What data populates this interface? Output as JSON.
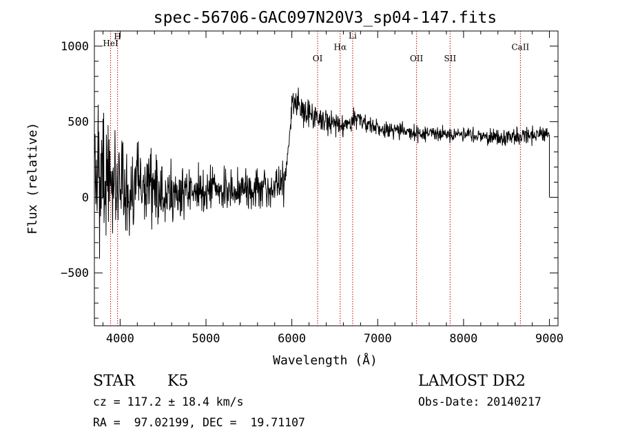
{
  "chart_data": {
    "type": "line",
    "title": "spec-56706-GAC097N20V3_sp04-147.fits",
    "xlabel": "Wavelength (Å)",
    "ylabel": "Flux (relative)",
    "xlim": [
      3700,
      9100
    ],
    "ylim": [
      -850,
      1100
    ],
    "x_ticks": [
      4000,
      5000,
      6000,
      7000,
      8000,
      9000
    ],
    "x_tick_labels": [
      "4000",
      "5000",
      "6000",
      "7000",
      "8000",
      "9000"
    ],
    "y_ticks": [
      -500,
      0,
      500,
      1000
    ],
    "y_tick_labels": [
      "−500",
      "0",
      "500",
      "1000"
    ],
    "grid": false,
    "series_color": "#000000",
    "line_color": "#c00000",
    "lines": [
      {
        "label": "HeI",
        "x": 3889,
        "label_y": 1000
      },
      {
        "label": "H",
        "x": 3970,
        "label_y": 1045
      },
      {
        "label": "OI",
        "x": 6300,
        "label_y": 900
      },
      {
        "label": "Hα",
        "x": 6563,
        "label_y": 975
      },
      {
        "label": "Li",
        "x": 6708,
        "label_y": 1050
      },
      {
        "label": "OII",
        "x": 7452,
        "label_y": 900
      },
      {
        "label": "SII",
        "x": 7843,
        "label_y": 900
      },
      {
        "label": "CaII",
        "x": 8662,
        "label_y": 975
      }
    ],
    "spectrum_profile": [
      {
        "x": 3700,
        "y": 150,
        "noise": 380
      },
      {
        "x": 3800,
        "y": 150,
        "noise": 420
      },
      {
        "x": 4000,
        "y": 80,
        "noise": 300
      },
      {
        "x": 4500,
        "y": 20,
        "noise": 170
      },
      {
        "x": 5000,
        "y": 40,
        "noise": 120
      },
      {
        "x": 5500,
        "y": 60,
        "noise": 100
      },
      {
        "x": 5900,
        "y": 80,
        "noise": 120
      },
      {
        "x": 5950,
        "y": 250,
        "noise": 90
      },
      {
        "x": 6000,
        "y": 620,
        "noise": 90
      },
      {
        "x": 6300,
        "y": 530,
        "noise": 70
      },
      {
        "x": 6600,
        "y": 460,
        "noise": 60
      },
      {
        "x": 6700,
        "y": 520,
        "noise": 60
      },
      {
        "x": 7000,
        "y": 460,
        "noise": 50
      },
      {
        "x": 7500,
        "y": 420,
        "noise": 45
      },
      {
        "x": 8000,
        "y": 420,
        "noise": 40
      },
      {
        "x": 8500,
        "y": 390,
        "noise": 45
      },
      {
        "x": 9000,
        "y": 420,
        "noise": 50
      }
    ]
  },
  "info": {
    "object_class": "STAR",
    "subclass": "K5",
    "survey": "LAMOST DR2",
    "cz": "cz = 117.2 ± 18.4 km/s",
    "obs_date": "Obs-Date: 20140217",
    "coords": "RA =  97.02199, DEC =  19.71107"
  }
}
